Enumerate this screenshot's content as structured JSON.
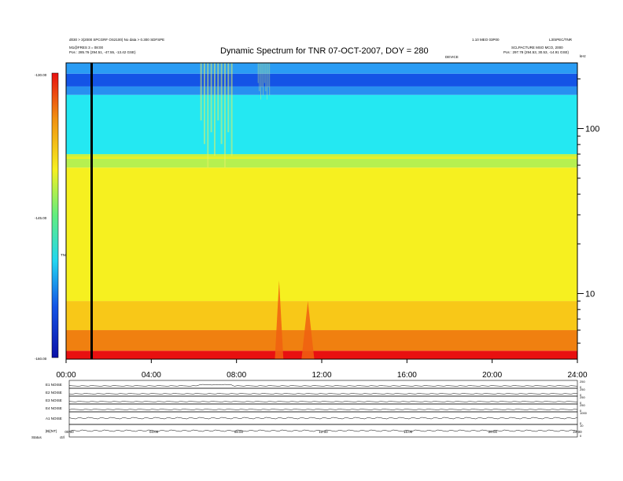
{
  "header": {
    "title": "Dynamic Spectrum for TNR 07-OCT-2007, DOY = 280",
    "left_line1": "d030 > 3(2000 SPCGRF OS2100) No data > 0.300 SDFSPE",
    "left_line2": "M1@FRES 3 = 08:00",
    "left_line3": "Pos : 285.76 (294.51, -47.55, -13.42 GSE)",
    "right_line1": "1.10 MEO 03P00",
    "right_line2": "L3/SPEC/TNR",
    "right_line3": "SCLPACTURE MSO MCO, 2000",
    "right_line4": "Pos : 297.78 (294.53, 30.53, -14.91 GSE)",
    "center_small": "DEVICE",
    "unit_label": "kHz"
  },
  "colorbar": {
    "max_label": "-130.00",
    "mid_label": "-145.00",
    "min_label": "-160.00",
    "side_label": "TNR"
  },
  "chart_data": {
    "type": "heatmap",
    "title": "Dynamic Spectrum for TNR 07-OCT-2007, DOY = 280",
    "xlabel": "",
    "ylabel": "kHz",
    "x_ticks": [
      "00:00",
      "04:00",
      "08:00",
      "12:00",
      "16:00",
      "20:00",
      "24:00"
    ],
    "x_range_hours": [
      0,
      24
    ],
    "y_scale": "log",
    "y_range_khz": [
      4,
      250
    ],
    "y_ticks": [
      10,
      100
    ],
    "color_scale_db": [
      -160,
      -130
    ],
    "color_ticks": [
      -160,
      -145,
      -130
    ],
    "colormap": [
      "#0a1cc0",
      "#1a6cf0",
      "#20d8f0",
      "#6cf080",
      "#f8f020",
      "#f0a010",
      "#e81010"
    ],
    "bands": [
      {
        "from_khz": 4,
        "to_khz": 4.5,
        "level_db": -131,
        "color": "#e81010"
      },
      {
        "from_khz": 4.5,
        "to_khz": 6,
        "level_db": -138,
        "color": "#f08010"
      },
      {
        "from_khz": 6,
        "to_khz": 9,
        "level_db": -143,
        "color": "#f8c818"
      },
      {
        "from_khz": 9,
        "to_khz": 58,
        "level_db": -147,
        "color": "#f6f020"
      },
      {
        "from_khz": 58,
        "to_khz": 70,
        "level_db": -150,
        "color": "#b6f050"
      },
      {
        "from_khz": 70,
        "to_khz": 160,
        "level_db": -152,
        "color": "#24e8f2"
      },
      {
        "from_khz": 160,
        "to_khz": 180,
        "level_db": -154,
        "color": "#2890f0"
      },
      {
        "from_khz": 180,
        "to_khz": 215,
        "level_db": -157,
        "color": "#1454e6"
      },
      {
        "from_khz": 215,
        "to_khz": 250,
        "level_db": -155,
        "color": "#2a9cf4"
      }
    ],
    "events": [
      {
        "time_h": 6.3,
        "duration_h": 1.6,
        "from_khz": 58,
        "to_khz": 250,
        "note": "emission burst"
      },
      {
        "time_h": 9.0,
        "duration_h": 0.6,
        "from_khz": 150,
        "to_khz": 250,
        "note": "emission burst"
      },
      {
        "time_h": 9.9,
        "duration_h": 0.2,
        "from_khz": 4,
        "to_khz": 12,
        "note": "low frequency spike"
      },
      {
        "time_h": 11.2,
        "duration_h": 0.3,
        "from_khz": 4,
        "to_khz": 9,
        "note": "low frequency spike"
      }
    ],
    "marker_line_h": 1.2
  },
  "subpanels": {
    "rows": [
      {
        "label": "E1 NOISE",
        "scale_top": "250",
        "scale_bot": "0"
      },
      {
        "label": "E2 NOISE",
        "scale_top": "250",
        "scale_bot": "0"
      },
      {
        "label": "E3 NOISE",
        "scale_top": "250",
        "scale_bot": "0"
      },
      {
        "label": "E4 NOISE",
        "scale_top": "250",
        "scale_bot": "0"
      },
      {
        "label": "A1 NOISE",
        "scale_top": "1000",
        "scale_bot": "0"
      },
      {
        "label": "|B|(NT)",
        "scale_top": "10",
        "scale_bot": "0"
      }
    ],
    "x_ticks": [
      "00:00",
      "04:00",
      "08:00",
      "12:00",
      "16:00",
      "20:00",
      "24:00"
    ],
    "footer_left": "Status",
    "footer_right": "ctrl"
  }
}
